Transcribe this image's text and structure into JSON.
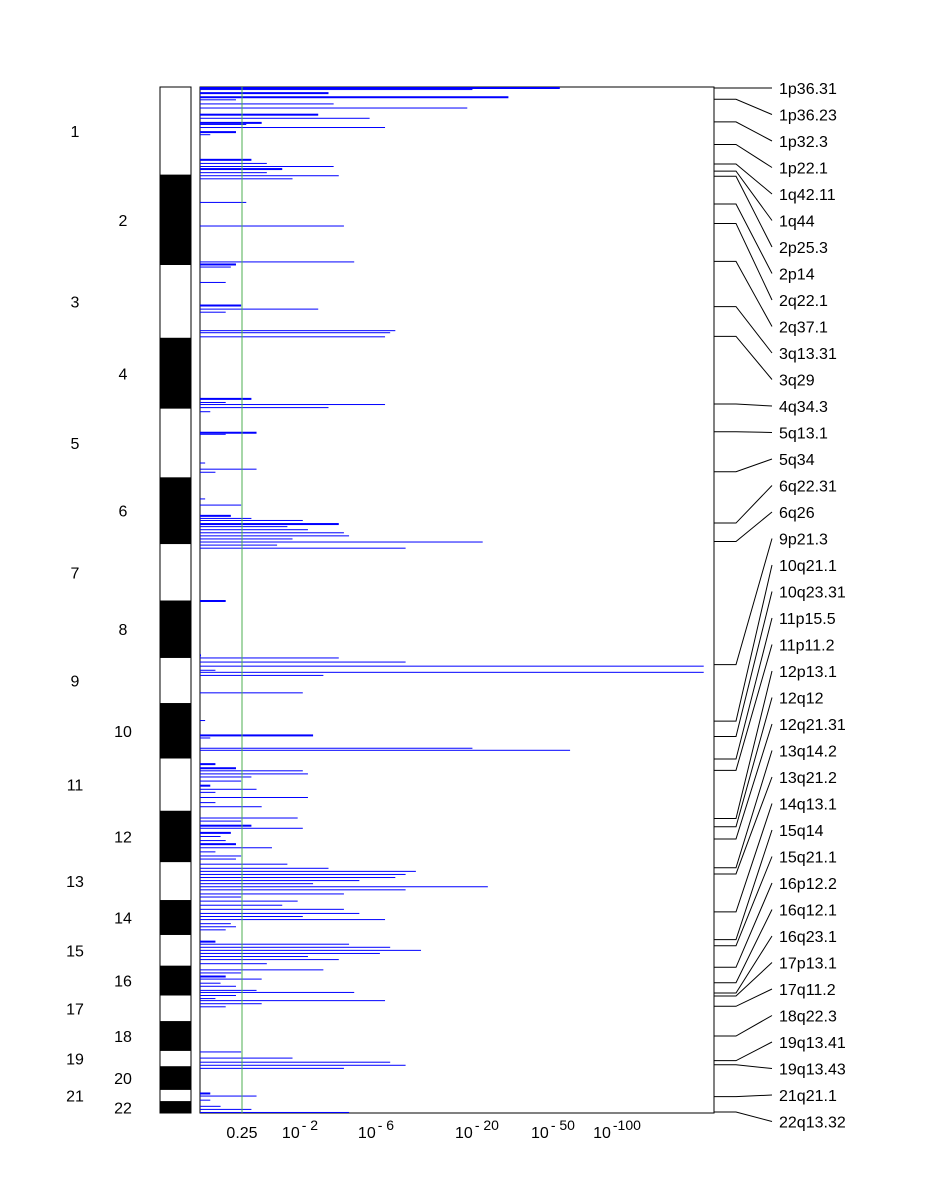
{
  "chart_data": {
    "type": "bar",
    "orientation": "horizontal",
    "title": "",
    "xlabel": "",
    "ylabel": "",
    "x_scale": "log p-value (reversed)",
    "threshold": {
      "label": "0.25",
      "value": 0.25,
      "color": "#4caf50"
    },
    "x_ticks": [
      {
        "label": "0.25",
        "base": "0.25",
        "exp": ""
      },
      {
        "label": "10^-2",
        "base": "10",
        "exp": "- 2"
      },
      {
        "label": "10^-6",
        "base": "10",
        "exp": "- 6"
      },
      {
        "label": "10^-20",
        "base": "10",
        "exp": "- 20"
      },
      {
        "label": "10^-50",
        "base": "10",
        "exp": "- 50"
      },
      {
        "label": "10^-100",
        "base": "10",
        "exp": "-100"
      }
    ],
    "bar_color": "#0000ff",
    "chromosomes": [
      {
        "label": "1",
        "start": 0.0,
        "end": 0.086,
        "shade": "white"
      },
      {
        "label": "2",
        "start": 0.086,
        "end": 0.173,
        "shade": "black"
      },
      {
        "label": "3",
        "start": 0.173,
        "end": 0.245,
        "shade": "white"
      },
      {
        "label": "4",
        "start": 0.245,
        "end": 0.313,
        "shade": "black"
      },
      {
        "label": "5",
        "start": 0.313,
        "end": 0.381,
        "shade": "white"
      },
      {
        "label": "6",
        "start": 0.381,
        "end": 0.445,
        "shade": "black"
      },
      {
        "label": "7",
        "start": 0.445,
        "end": 0.501,
        "shade": "white"
      },
      {
        "label": "8",
        "start": 0.501,
        "end": 0.556,
        "shade": "black"
      },
      {
        "label": "9",
        "start": 0.556,
        "end": 0.601,
        "shade": "white"
      },
      {
        "label": "10",
        "start": 0.601,
        "end": 0.654,
        "shade": "black"
      },
      {
        "label": "11",
        "start": 0.654,
        "end": 0.706,
        "shade": "white"
      },
      {
        "label": "12",
        "start": 0.706,
        "end": 0.755,
        "shade": "black"
      },
      {
        "label": "13",
        "start": 0.755,
        "end": 0.793,
        "shade": "white"
      },
      {
        "label": "14",
        "start": 0.793,
        "end": 0.826,
        "shade": "black"
      },
      {
        "label": "15",
        "start": 0.826,
        "end": 0.857,
        "shade": "white"
      },
      {
        "label": "16",
        "start": 0.857,
        "end": 0.885,
        "shade": "black"
      },
      {
        "label": "17",
        "start": 0.885,
        "end": 0.911,
        "shade": "white"
      },
      {
        "label": "18",
        "start": 0.911,
        "end": 0.939,
        "shade": "black"
      },
      {
        "label": "19",
        "start": 0.939,
        "end": 0.955,
        "shade": "white"
      },
      {
        "label": "20",
        "start": 0.955,
        "end": 0.977,
        "shade": "black"
      },
      {
        "label": "21",
        "start": 0.977,
        "end": 0.989,
        "shade": "white"
      },
      {
        "label": "22",
        "start": 0.989,
        "end": 1.0,
        "shade": "black"
      }
    ],
    "bars": [
      [
        0.0,
        0.7,
        2
      ],
      [
        0.002,
        0.53,
        1
      ],
      [
        0.005,
        0.25,
        2
      ],
      [
        0.009,
        0.6,
        2
      ],
      [
        0.012,
        0.07,
        1
      ],
      [
        0.016,
        0.26,
        1
      ],
      [
        0.02,
        0.52,
        1
      ],
      [
        0.026,
        0.23,
        2
      ],
      [
        0.03,
        0.33,
        1
      ],
      [
        0.034,
        0.12,
        2
      ],
      [
        0.036,
        0.09,
        1
      ],
      [
        0.039,
        0.36,
        1
      ],
      [
        0.043,
        0.07,
        2
      ],
      [
        0.046,
        0.02,
        1
      ],
      [
        0.07,
        0.1,
        2
      ],
      [
        0.074,
        0.13,
        1
      ],
      [
        0.077,
        0.26,
        1
      ],
      [
        0.079,
        0.16,
        2
      ],
      [
        0.083,
        0.13,
        1
      ],
      [
        0.086,
        0.27,
        1
      ],
      [
        0.089,
        0.18,
        1
      ],
      [
        0.112,
        0.09,
        1
      ],
      [
        0.135,
        0.28,
        1
      ],
      [
        0.17,
        0.3,
        1
      ],
      [
        0.172,
        0.07,
        2
      ],
      [
        0.175,
        0.06,
        1
      ],
      [
        0.19,
        0.05,
        1
      ],
      [
        0.212,
        0.08,
        2
      ],
      [
        0.216,
        0.23,
        1
      ],
      [
        0.219,
        0.05,
        1
      ],
      [
        0.237,
        0.38,
        1
      ],
      [
        0.239,
        0.37,
        1
      ],
      [
        0.243,
        0.36,
        1
      ],
      [
        0.303,
        0.1,
        2
      ],
      [
        0.307,
        0.05,
        1
      ],
      [
        0.309,
        0.36,
        1
      ],
      [
        0.312,
        0.25,
        1
      ],
      [
        0.316,
        0.02,
        1
      ],
      [
        0.336,
        0.11,
        2
      ],
      [
        0.338,
        0.05,
        1
      ],
      [
        0.366,
        0.01,
        1
      ],
      [
        0.372,
        0.11,
        1
      ],
      [
        0.375,
        0.03,
        1
      ],
      [
        0.401,
        0.01,
        1
      ],
      [
        0.407,
        0.08,
        1
      ],
      [
        0.417,
        0.06,
        2
      ],
      [
        0.42,
        0.1,
        1
      ],
      [
        0.422,
        0.2,
        1
      ],
      [
        0.425,
        0.27,
        2
      ],
      [
        0.428,
        0.17,
        1
      ],
      [
        0.431,
        0.21,
        1
      ],
      [
        0.434,
        0.28,
        1
      ],
      [
        0.437,
        0.29,
        1
      ],
      [
        0.44,
        0.18,
        1
      ],
      [
        0.443,
        0.55,
        1
      ],
      [
        0.446,
        0.15,
        1
      ],
      [
        0.449,
        0.4,
        1
      ],
      [
        0.5,
        0.05,
        2
      ],
      [
        0.553,
        0.0,
        2
      ],
      [
        0.556,
        0.27,
        1
      ],
      [
        0.56,
        0.4,
        1
      ],
      [
        0.564,
        0.98,
        1
      ],
      [
        0.568,
        0.03,
        1
      ],
      [
        0.57,
        0.98,
        1
      ],
      [
        0.573,
        0.24,
        1
      ],
      [
        0.59,
        0.2,
        1
      ],
      [
        0.617,
        0.01,
        1
      ],
      [
        0.631,
        0.22,
        2
      ],
      [
        0.634,
        0.02,
        1
      ],
      [
        0.644,
        0.53,
        1
      ],
      [
        0.646,
        0.72,
        1
      ],
      [
        0.659,
        0.03,
        2
      ],
      [
        0.663,
        0.07,
        2
      ],
      [
        0.666,
        0.2,
        1
      ],
      [
        0.669,
        0.21,
        1
      ],
      [
        0.672,
        0.1,
        1
      ],
      [
        0.676,
        0.08,
        1
      ],
      [
        0.68,
        0.02,
        2
      ],
      [
        0.684,
        0.11,
        1
      ],
      [
        0.687,
        0.03,
        1
      ],
      [
        0.692,
        0.21,
        1
      ],
      [
        0.697,
        0.03,
        1
      ],
      [
        0.701,
        0.12,
        1
      ],
      [
        0.712,
        0.19,
        1
      ],
      [
        0.715,
        0.08,
        1
      ],
      [
        0.719,
        0.1,
        2
      ],
      [
        0.722,
        0.2,
        1
      ],
      [
        0.726,
        0.06,
        2
      ],
      [
        0.73,
        0.04,
        1
      ],
      [
        0.734,
        0.05,
        1
      ],
      [
        0.737,
        0.07,
        2
      ],
      [
        0.741,
        0.14,
        1
      ],
      [
        0.745,
        0.03,
        1
      ],
      [
        0.749,
        0.08,
        1
      ],
      [
        0.752,
        0.07,
        1
      ],
      [
        0.757,
        0.17,
        1
      ],
      [
        0.761,
        0.25,
        1
      ],
      [
        0.764,
        0.42,
        1
      ],
      [
        0.767,
        0.4,
        1
      ],
      [
        0.77,
        0.38,
        1
      ],
      [
        0.773,
        0.31,
        1
      ],
      [
        0.776,
        0.22,
        1
      ],
      [
        0.779,
        0.56,
        1
      ],
      [
        0.782,
        0.4,
        1
      ],
      [
        0.786,
        0.28,
        1
      ],
      [
        0.789,
        0.08,
        1
      ],
      [
        0.793,
        0.19,
        1
      ],
      [
        0.797,
        0.16,
        1
      ],
      [
        0.801,
        0.28,
        1
      ],
      [
        0.805,
        0.31,
        1
      ],
      [
        0.808,
        0.2,
        1
      ],
      [
        0.811,
        0.36,
        1
      ],
      [
        0.815,
        0.06,
        1
      ],
      [
        0.818,
        0.07,
        1
      ],
      [
        0.821,
        0.05,
        1
      ],
      [
        0.832,
        0.03,
        2
      ],
      [
        0.835,
        0.29,
        1
      ],
      [
        0.838,
        0.37,
        1
      ],
      [
        0.841,
        0.43,
        1
      ],
      [
        0.844,
        0.35,
        1
      ],
      [
        0.847,
        0.21,
        1
      ],
      [
        0.85,
        0.27,
        1
      ],
      [
        0.854,
        0.13,
        1
      ],
      [
        0.86,
        0.24,
        1
      ],
      [
        0.863,
        0.08,
        1
      ],
      [
        0.866,
        0.05,
        2
      ],
      [
        0.869,
        0.12,
        1
      ],
      [
        0.873,
        0.04,
        1
      ],
      [
        0.876,
        0.07,
        1
      ],
      [
        0.88,
        0.11,
        1
      ],
      [
        0.882,
        0.3,
        1
      ],
      [
        0.885,
        0.07,
        1
      ],
      [
        0.888,
        0.03,
        1
      ],
      [
        0.89,
        0.36,
        1
      ],
      [
        0.893,
        0.12,
        1
      ],
      [
        0.896,
        0.05,
        1
      ],
      [
        0.94,
        0.08,
        1
      ],
      [
        0.946,
        0.18,
        1
      ],
      [
        0.95,
        0.37,
        1
      ],
      [
        0.953,
        0.4,
        1
      ],
      [
        0.956,
        0.28,
        1
      ],
      [
        0.98,
        0.02,
        2
      ],
      [
        0.983,
        0.11,
        1
      ],
      [
        0.987,
        0.02,
        1
      ],
      [
        0.993,
        0.04,
        1
      ],
      [
        0.996,
        0.1,
        1
      ],
      [
        0.999,
        0.29,
        1
      ]
    ],
    "regions": [
      {
        "label": "1p36.31",
        "pos": 0.001
      },
      {
        "label": "1p36.23",
        "pos": 0.012
      },
      {
        "label": "1p32.3",
        "pos": 0.034
      },
      {
        "label": "1p22.1",
        "pos": 0.056
      },
      {
        "label": "1q42.11",
        "pos": 0.075
      },
      {
        "label": "1q44",
        "pos": 0.082
      },
      {
        "label": "2p25.3",
        "pos": 0.087
      },
      {
        "label": "2p14",
        "pos": 0.114
      },
      {
        "label": "2q22.1",
        "pos": 0.133
      },
      {
        "label": "2q37.1",
        "pos": 0.17
      },
      {
        "label": "3q13.31",
        "pos": 0.214
      },
      {
        "label": "3q29",
        "pos": 0.243
      },
      {
        "label": "4q34.3",
        "pos": 0.309
      },
      {
        "label": "5q13.1",
        "pos": 0.336
      },
      {
        "label": "5q34",
        "pos": 0.375
      },
      {
        "label": "6q22.31",
        "pos": 0.425
      },
      {
        "label": "6q26",
        "pos": 0.443
      },
      {
        "label": "9p21.3",
        "pos": 0.563
      },
      {
        "label": "10q21.1",
        "pos": 0.618
      },
      {
        "label": "10q23.31",
        "pos": 0.633
      },
      {
        "label": "11p15.5",
        "pos": 0.655
      },
      {
        "label": "11p11.2",
        "pos": 0.666
      },
      {
        "label": "12p13.1",
        "pos": 0.713
      },
      {
        "label": "12q12",
        "pos": 0.721
      },
      {
        "label": "12q21.31",
        "pos": 0.733
      },
      {
        "label": "13q14.2",
        "pos": 0.761
      },
      {
        "label": "13q21.2",
        "pos": 0.767
      },
      {
        "label": "14q13.1",
        "pos": 0.804
      },
      {
        "label": "15q14",
        "pos": 0.831
      },
      {
        "label": "15q21.1",
        "pos": 0.837
      },
      {
        "label": "16p12.2",
        "pos": 0.858
      },
      {
        "label": "16q12.1",
        "pos": 0.873
      },
      {
        "label": "16q23.1",
        "pos": 0.883
      },
      {
        "label": "17p13.1",
        "pos": 0.886
      },
      {
        "label": "17q11.2",
        "pos": 0.896
      },
      {
        "label": "18q22.3",
        "pos": 0.925
      },
      {
        "label": "19q13.41",
        "pos": 0.949
      },
      {
        "label": "19q13.43",
        "pos": 0.953
      },
      {
        "label": "21q21.1",
        "pos": 0.984
      },
      {
        "label": "22q13.32",
        "pos": 0.999
      }
    ]
  }
}
